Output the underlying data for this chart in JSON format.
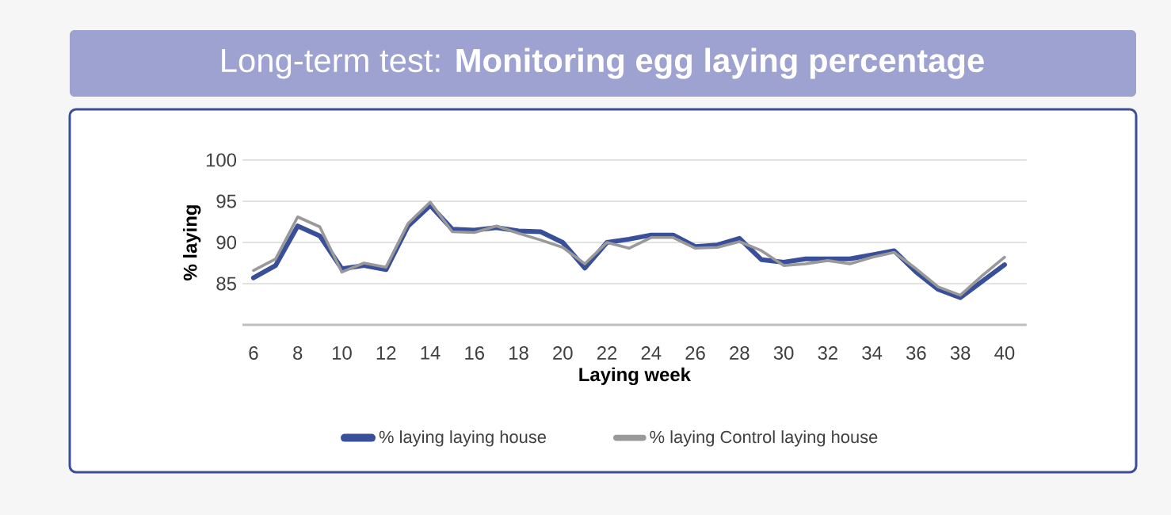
{
  "chart_data": {
    "type": "line",
    "title": "Long-term test: **Monitoring egg laying percentage**",
    "xlabel": "Laying week",
    "ylabel": "% laying",
    "x": [
      6,
      7,
      8,
      9,
      10,
      11,
      12,
      13,
      14,
      15,
      16,
      17,
      18,
      19,
      20,
      21,
      22,
      23,
      24,
      25,
      26,
      27,
      28,
      29,
      30,
      31,
      32,
      33,
      34,
      35,
      36,
      37,
      38,
      39,
      40
    ],
    "series": [
      {
        "name": "% laying laying house",
        "color": "#3a4f99",
        "values": [
          85.7,
          87.2,
          92,
          90.8,
          86.8,
          87.2,
          86.7,
          92,
          94.5,
          91.6,
          91.5,
          91.8,
          91.4,
          91.3,
          90,
          86.9,
          90,
          90.4,
          90.9,
          90.9,
          89.5,
          89.7,
          90.5,
          87.9,
          87.6,
          88,
          88,
          88,
          88.5,
          89,
          86.4,
          84.3,
          83.3,
          85.3,
          87.3
        ]
      },
      {
        "name": "% laying Control laying house",
        "color": "#999999",
        "values": [
          86.6,
          88,
          93.1,
          91.9,
          86.4,
          87.5,
          87,
          92.3,
          94.9,
          91.3,
          91.2,
          92,
          91.1,
          90.3,
          89.4,
          87.4,
          90,
          89.3,
          90.6,
          90.6,
          89.3,
          89.4,
          90.1,
          89,
          87.2,
          87.4,
          87.8,
          87.4,
          88.2,
          88.8,
          86.8,
          84.6,
          83.6,
          86,
          88.2
        ]
      }
    ],
    "xlim": [
      5.5,
      41
    ],
    "ylim": [
      80,
      100
    ],
    "xticks": [
      6,
      8,
      10,
      12,
      14,
      16,
      18,
      20,
      22,
      24,
      26,
      28,
      30,
      32,
      34,
      36,
      38,
      40
    ],
    "yticks": [
      85,
      90,
      95,
      100
    ],
    "grid": "y",
    "legend": "bottom"
  }
}
